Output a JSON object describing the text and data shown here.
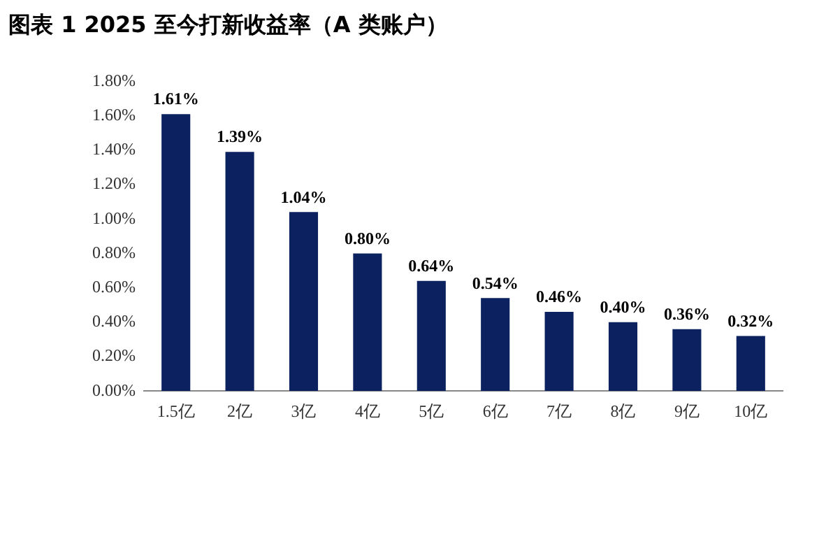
{
  "chart_data": {
    "type": "bar",
    "title": "图表 1 2025 至今打新收益率（A 类账户）",
    "categories": [
      "1.5亿",
      "2亿",
      "3亿",
      "4亿",
      "5亿",
      "6亿",
      "7亿",
      "8亿",
      "9亿",
      "10亿"
    ],
    "values": [
      1.61,
      1.39,
      1.04,
      0.8,
      0.64,
      0.54,
      0.46,
      0.4,
      0.36,
      0.32
    ],
    "value_labels": [
      "1.61%",
      "1.39%",
      "1.04%",
      "0.80%",
      "0.64%",
      "0.54%",
      "0.46%",
      "0.40%",
      "0.36%",
      "0.32%"
    ],
    "color": "#0c2260",
    "ylim": [
      0,
      1.8
    ],
    "yticks": [
      {
        "value": 0,
        "label": "0.00%"
      },
      {
        "value": 0.2,
        "label": "0.20%"
      },
      {
        "value": 0.4,
        "label": "0.40%"
      },
      {
        "value": 0.6,
        "label": "0.60%"
      },
      {
        "value": 0.8,
        "label": "0.80%"
      },
      {
        "value": 1.0,
        "label": "1.00%"
      },
      {
        "value": 1.2,
        "label": "1.20%"
      },
      {
        "value": 1.4,
        "label": "1.40%"
      },
      {
        "value": 1.6,
        "label": "1.60%"
      },
      {
        "value": 1.8,
        "label": "1.80%"
      }
    ],
    "grid": false,
    "legend": false
  }
}
